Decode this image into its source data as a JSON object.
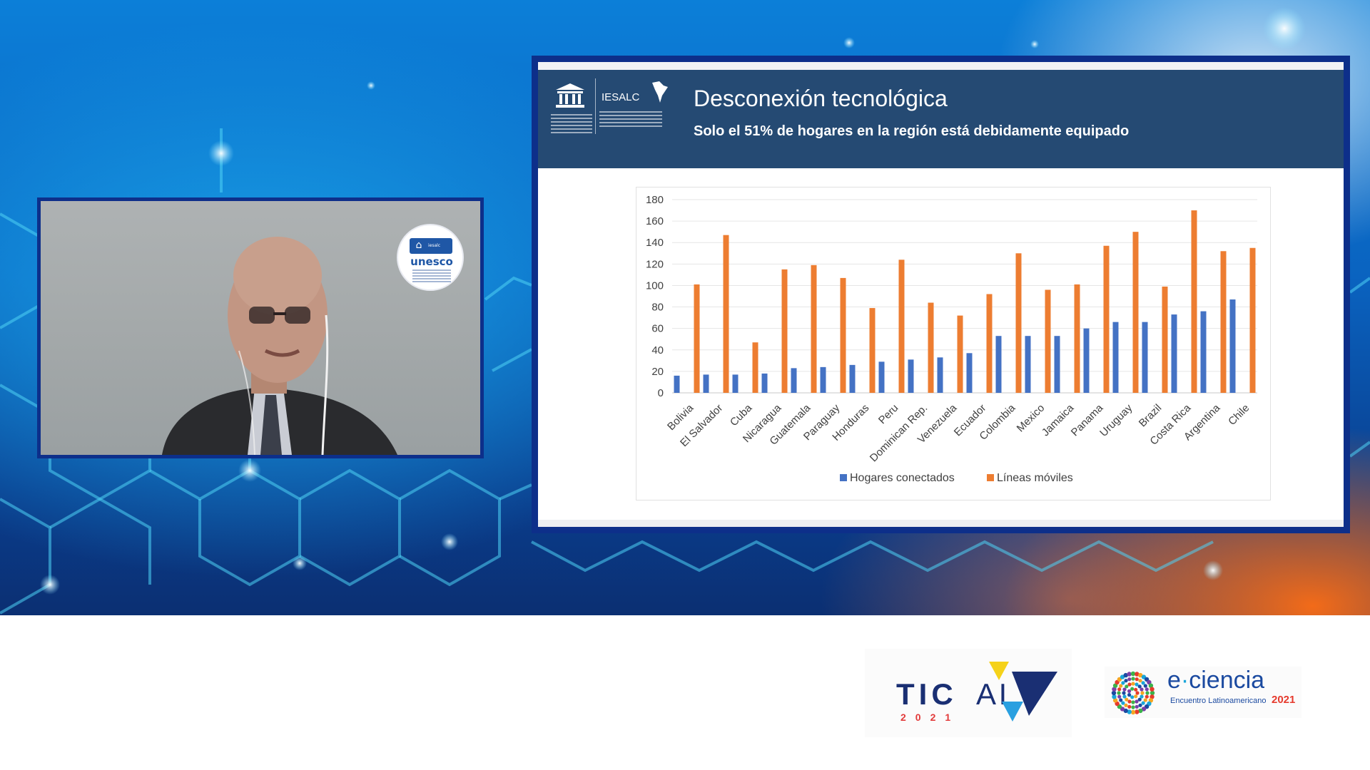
{
  "slide": {
    "title": "Desconexión tecnológica",
    "subtitle": "Solo el 51% de hogares en la región está debidamente equipado",
    "org_name": "IESALC",
    "header_color": "#254a73"
  },
  "webcam": {
    "badge_name": "unesco",
    "badge_mini": "iesalc"
  },
  "chart_data": {
    "type": "bar",
    "categories": [
      "Bolivia",
      "El Salvador",
      "Cuba",
      "Nicaragua",
      "Guatemala",
      "Paraguay",
      "Honduras",
      "Peru",
      "Dominican Rep.",
      "Venezuela",
      "Ecuador",
      "Colombia",
      "Mexico",
      "Jamaica",
      "Panama",
      "Uruguay",
      "Brazil",
      "Costa Rica",
      "Argentina",
      "Chile"
    ],
    "series": [
      {
        "name": "Hogares conectados",
        "color": "#4472c4",
        "values": [
          16,
          17,
          17,
          18,
          23,
          24,
          26,
          29,
          31,
          33,
          37,
          53,
          53,
          53,
          60,
          66,
          66,
          73,
          76,
          87
        ]
      },
      {
        "name": "Líneas móviles",
        "color": "#ed7d31",
        "values": [
          101,
          147,
          47,
          115,
          119,
          107,
          79,
          124,
          84,
          72,
          92,
          130,
          96,
          101,
          137,
          150,
          99,
          170,
          132,
          135
        ]
      }
    ],
    "yticks": [
      0,
      20,
      40,
      60,
      80,
      100,
      120,
      140,
      160,
      180
    ],
    "ylim": [
      0,
      180
    ],
    "grid": true,
    "legend_position": "bottom"
  },
  "footer": {
    "tical": {
      "tic": "TIC",
      "al": "AL",
      "year": "2021"
    },
    "eciencia": {
      "e": "e",
      "dot": "·",
      "name": "ciencia",
      "subtitle": "Encuentro Latinoamericano",
      "year": "2021"
    }
  }
}
